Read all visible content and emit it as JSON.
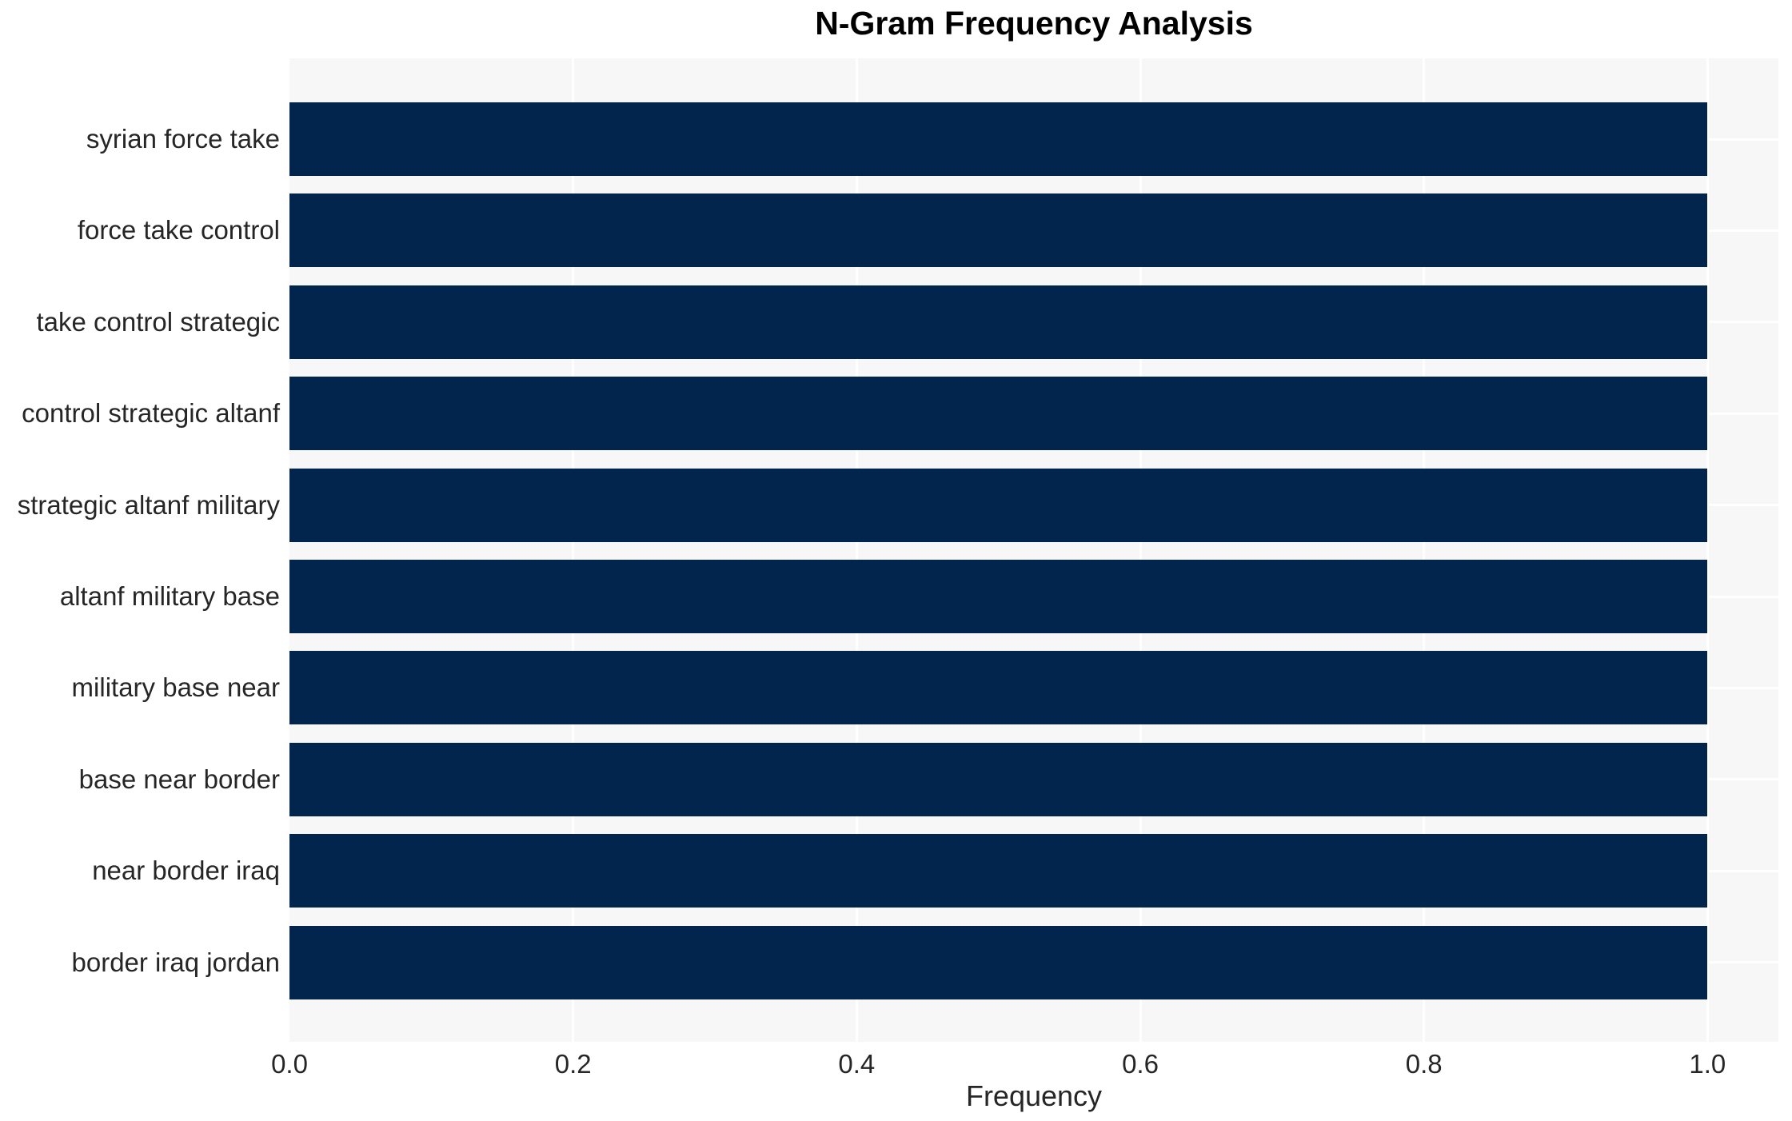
{
  "figure": {
    "title": "N-Gram Frequency Analysis",
    "x_axis": {
      "label": "Frequency",
      "tick_labels": [
        "0.0",
        "0.2",
        "0.4",
        "0.6",
        "0.8",
        "1.0"
      ],
      "tick_values": [
        0.0,
        0.2,
        0.4,
        0.6,
        0.8,
        1.0
      ]
    },
    "colors": {
      "bar": "#02254e",
      "plot_background": "#f7f7f8",
      "gridline": "#ffffff",
      "tick_text": "#262626",
      "title_text": "#000000"
    }
  },
  "chart_data": {
    "type": "bar",
    "orientation": "horizontal",
    "title": "N-Gram Frequency Analysis",
    "xlabel": "Frequency",
    "ylabel": "",
    "categories": [
      "syrian force take",
      "force take control",
      "take control strategic",
      "control strategic altanf",
      "strategic altanf military",
      "altanf military base",
      "military base near",
      "base near border",
      "near border iraq",
      "border iraq jordan"
    ],
    "values": [
      1.0,
      1.0,
      1.0,
      1.0,
      1.0,
      1.0,
      1.0,
      1.0,
      1.0,
      1.0
    ],
    "xlim": [
      0,
      1.05
    ],
    "grid": true,
    "legend": false
  }
}
